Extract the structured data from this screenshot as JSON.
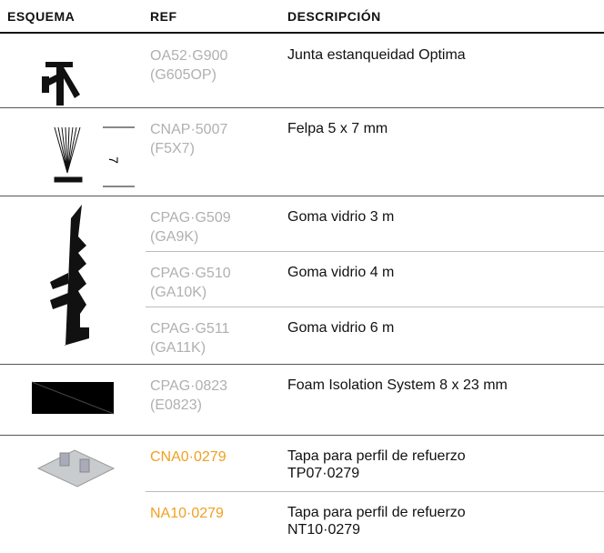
{
  "table": {
    "headers": [
      "ESQUEMA",
      "REF",
      "DESCRIPCIÓN"
    ],
    "groups": [
      {
        "rows": [
          {
            "ref": [
              "OA52·G900",
              "(G605OP)"
            ],
            "description": [
              "Junta estanqueidad Optima"
            ],
            "color": "#b0b0b0"
          }
        ]
      },
      {
        "schema_label": "7",
        "rows": [
          {
            "ref": [
              "CNAP·5007",
              "(F5X7)"
            ],
            "description": [
              "Felpa 5 x 7 mm"
            ],
            "color": "#b0b0b0"
          }
        ]
      },
      {
        "rows": [
          {
            "ref": [
              "CPAG·G509",
              "(GA9K)"
            ],
            "description": [
              "Goma vidrio 3 m"
            ],
            "color": "#b0b0b0"
          },
          {
            "ref": [
              "CPAG·G510",
              "(GA10K)"
            ],
            "description": [
              "Goma vidrio 4 m"
            ],
            "color": "#b0b0b0"
          },
          {
            "ref": [
              "CPAG·G511",
              "(GA11K)"
            ],
            "description": [
              "Goma vidrio 6 m"
            ],
            "color": "#b0b0b0"
          }
        ]
      },
      {
        "rows": [
          {
            "ref": [
              "CPAG·0823",
              "(E0823)"
            ],
            "description": [
              "Foam Isolation System 8 x 23 mm"
            ],
            "color": "#b0b0b0"
          }
        ]
      },
      {
        "rows": [
          {
            "ref": [
              "CNA0·0279"
            ],
            "description": [
              "Tapa para perfil de refuerzo",
              "TP07·0279"
            ],
            "color": "#f0a020"
          },
          {
            "ref": [
              "NA10·0279"
            ],
            "description": [
              "Tapa para perfil de refuerzo",
              "NT10·0279"
            ],
            "color": "#f0a020"
          }
        ]
      }
    ]
  }
}
